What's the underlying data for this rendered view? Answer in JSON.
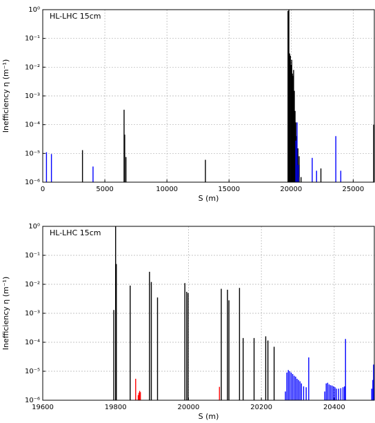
{
  "chart_data": [
    {
      "type": "bar",
      "annotation": "HL-LHC 15cm",
      "xlabel": "S (m)",
      "ylabel": "Inefficiency η (m⁻¹)",
      "xlim": [
        0,
        26700
      ],
      "ylim": [
        1e-06,
        1
      ],
      "yscale": "log",
      "grid": true,
      "xticks": [
        0,
        5000,
        10000,
        15000,
        20000,
        25000
      ],
      "xtick_labels": [
        "0",
        "5000",
        "10000",
        "15000",
        "20000",
        "25000"
      ],
      "yticks": [
        1e-06,
        1e-05,
        0.0001,
        0.001,
        0.01,
        0.1,
        1
      ],
      "ytick_labels": [
        "10⁻⁶",
        "10⁻⁵",
        "10⁻⁴",
        "10⁻³",
        "10⁻²",
        "10⁻¹",
        "10⁰"
      ],
      "series": [
        {
          "color": "#000000",
          "points": [
            [
              3200,
              1.3e-05
            ],
            [
              6550,
              0.00033
            ],
            [
              6600,
              4.5e-05
            ],
            [
              6700,
              7.5e-06
            ],
            [
              13100,
              6e-06
            ],
            [
              19750,
              0.9
            ],
            [
              19820,
              1.0
            ],
            [
              19880,
              0.03
            ],
            [
              19940,
              0.025
            ],
            [
              20000,
              0.012
            ],
            [
              20050,
              0.018
            ],
            [
              20100,
              0.006
            ],
            [
              20150,
              0.005
            ],
            [
              20200,
              0.008
            ],
            [
              20260,
              0.0015
            ],
            [
              20320,
              0.0003
            ],
            [
              20380,
              0.00012
            ],
            [
              20450,
              4e-05
            ],
            [
              20550,
              1.5e-05
            ],
            [
              20650,
              8e-06
            ],
            [
              20800,
              1.5e-06
            ],
            [
              22400,
              3e-06
            ],
            [
              26650,
              0.0001
            ]
          ]
        },
        {
          "color": "#0000ff",
          "points": [
            [
              300,
              1.1e-05
            ],
            [
              700,
              9.5e-06
            ],
            [
              4050,
              3.5e-06
            ],
            [
              20380,
              2.8e-05
            ],
            [
              20480,
              0.00012
            ],
            [
              20580,
              4e-06
            ],
            [
              21700,
              7e-06
            ],
            [
              22050,
              2.5e-06
            ],
            [
              23600,
              4e-05
            ],
            [
              24000,
              2.5e-06
            ]
          ]
        }
      ]
    },
    {
      "type": "bar",
      "annotation": "HL-LHC 15cm",
      "xlabel": "S (m)",
      "ylabel": "Inefficiency η (m⁻¹)",
      "xlim": [
        19600,
        20510
      ],
      "ylim": [
        1e-06,
        1
      ],
      "yscale": "log",
      "grid": true,
      "xticks": [
        19600,
        19800,
        20000,
        20200,
        20400
      ],
      "xtick_labels": [
        "19600",
        "19800",
        "20000",
        "20200",
        "20400"
      ],
      "yticks": [
        1e-06,
        1e-05,
        0.0001,
        0.001,
        0.01,
        0.1,
        1
      ],
      "ytick_labels": [
        "10⁻⁶",
        "10⁻⁵",
        "10⁻⁴",
        "10⁻³",
        "10⁻²",
        "10⁻¹",
        "10⁰"
      ],
      "series": [
        {
          "color": "#000000",
          "points": [
            [
              19795,
              0.0013
            ],
            [
              19800,
              1.0
            ],
            [
              19802,
              0.05
            ],
            [
              19840,
              0.009
            ],
            [
              19893,
              0.027
            ],
            [
              19898,
              0.012
            ],
            [
              19915,
              0.0035
            ],
            [
              19990,
              0.011
            ],
            [
              19995,
              0.0055
            ],
            [
              19999,
              0.005
            ],
            [
              20090,
              0.007
            ],
            [
              20107,
              0.0065
            ],
            [
              20111,
              0.0028
            ],
            [
              20140,
              0.0075
            ],
            [
              20150,
              0.00014
            ],
            [
              20180,
              0.00014
            ],
            [
              20212,
              0.00016
            ],
            [
              20218,
              0.000115
            ],
            [
              20235,
              7e-05
            ]
          ]
        },
        {
          "color": "#ff0000",
          "points": [
            [
              19855,
              5.5e-06
            ],
            [
              19862,
              1.5e-06
            ],
            [
              19864,
              1.8e-06
            ],
            [
              19866,
              2.1e-06
            ],
            [
              19868,
              1.9e-06
            ],
            [
              20085,
              2.9e-06
            ]
          ]
        },
        {
          "color": "#0000ff",
          "points": [
            [
              20266,
              2e-06
            ],
            [
              20270,
              9e-06
            ],
            [
              20274,
              1.1e-05
            ],
            [
              20278,
              1e-05
            ],
            [
              20282,
              9e-06
            ],
            [
              20286,
              8e-06
            ],
            [
              20290,
              7e-06
            ],
            [
              20294,
              6.5e-06
            ],
            [
              20298,
              5.5e-06
            ],
            [
              20302,
              5e-06
            ],
            [
              20306,
              4.5e-06
            ],
            [
              20310,
              3.8e-06
            ],
            [
              20316,
              3e-06
            ],
            [
              20323,
              2.8e-06
            ],
            [
              20330,
              3e-05
            ],
            [
              20374,
              2e-06
            ],
            [
              20378,
              3.8e-06
            ],
            [
              20382,
              4e-06
            ],
            [
              20386,
              3.5e-06
            ],
            [
              20390,
              3.3e-06
            ],
            [
              20394,
              3.2e-06
            ],
            [
              20398,
              3e-06
            ],
            [
              20402,
              2.8e-06
            ],
            [
              20406,
              2.5e-06
            ],
            [
              20412,
              2.5e-06
            ],
            [
              20418,
              2.6e-06
            ],
            [
              20424,
              2.8e-06
            ],
            [
              20428,
              3e-06
            ],
            [
              20431,
              0.00013
            ],
            [
              20503,
              2.5e-06
            ],
            [
              20506,
              5e-06
            ],
            [
              20508,
              1.7e-05
            ]
          ]
        }
      ]
    }
  ]
}
